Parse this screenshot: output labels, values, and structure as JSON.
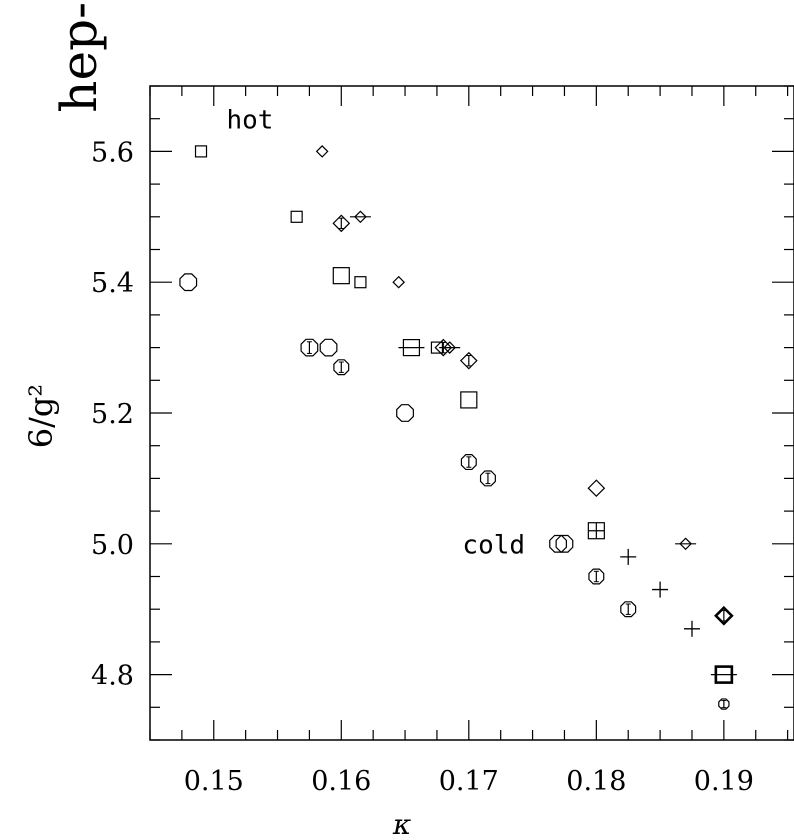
{
  "corner_text": "hep-",
  "chart_data": {
    "type": "scatter",
    "title": "",
    "xlabel": "κ",
    "ylabel": "6/g²",
    "xlim": [
      0.145,
      0.1955
    ],
    "ylim": [
      4.7,
      5.7
    ],
    "grid": false,
    "x_ticks": [
      0.15,
      0.16,
      0.17,
      0.18,
      0.19
    ],
    "x_tick_labels": [
      "0.15",
      "0.16",
      "0.17",
      "0.18",
      "0.19"
    ],
    "y_ticks": [
      4.8,
      5.0,
      5.2,
      5.4,
      5.6
    ],
    "y_tick_labels": [
      "4.8",
      "5.0",
      "5.2",
      "5.4",
      "5.6"
    ],
    "annotations": [
      {
        "text": "hot",
        "x": 0.151,
        "y": 5.635
      },
      {
        "text": "cold",
        "x": 0.1695,
        "y": 4.985
      }
    ],
    "points": [
      {
        "x": 0.149,
        "y": 5.6,
        "marker": "square",
        "size": "small"
      },
      {
        "x": 0.1585,
        "y": 5.6,
        "marker": "diamond",
        "size": "small"
      },
      {
        "x": 0.1565,
        "y": 5.5,
        "marker": "square",
        "size": "small"
      },
      {
        "x": 0.16,
        "y": 5.49,
        "marker": "diamond",
        "size": "medium",
        "errorbar": true
      },
      {
        "x": 0.1615,
        "y": 5.5,
        "marker": "diamond",
        "size": "small",
        "hbar": true
      },
      {
        "x": 0.148,
        "y": 5.4,
        "marker": "octagon",
        "size": "large"
      },
      {
        "x": 0.16,
        "y": 5.41,
        "marker": "square",
        "size": "medium"
      },
      {
        "x": 0.1615,
        "y": 5.4,
        "marker": "square",
        "size": "small"
      },
      {
        "x": 0.1645,
        "y": 5.4,
        "marker": "diamond",
        "size": "small"
      },
      {
        "x": 0.1575,
        "y": 5.3,
        "marker": "octagon",
        "size": "large",
        "errorbar": true
      },
      {
        "x": 0.159,
        "y": 5.3,
        "marker": "octagon",
        "size": "large"
      },
      {
        "x": 0.16,
        "y": 5.27,
        "marker": "octagon",
        "size": "medium",
        "errorbar": true
      },
      {
        "x": 0.1655,
        "y": 5.3,
        "marker": "square",
        "size": "medium",
        "hbar": true
      },
      {
        "x": 0.1675,
        "y": 5.3,
        "marker": "square",
        "size": "small"
      },
      {
        "x": 0.168,
        "y": 5.3,
        "marker": "diamond",
        "size": "medium",
        "errorbar": true
      },
      {
        "x": 0.1685,
        "y": 5.3,
        "marker": "diamond",
        "size": "small",
        "hbar": true
      },
      {
        "x": 0.17,
        "y": 5.28,
        "marker": "diamond",
        "size": "medium",
        "errorbar": true
      },
      {
        "x": 0.165,
        "y": 5.2,
        "marker": "octagon",
        "size": "large"
      },
      {
        "x": 0.17,
        "y": 5.22,
        "marker": "square",
        "size": "medium"
      },
      {
        "x": 0.17,
        "y": 5.125,
        "marker": "octagon",
        "size": "medium",
        "errorbar": true
      },
      {
        "x": 0.1715,
        "y": 5.1,
        "marker": "octagon",
        "size": "medium",
        "errorbar": true
      },
      {
        "x": 0.18,
        "y": 5.085,
        "marker": "diamond",
        "size": "medium"
      },
      {
        "x": 0.177,
        "y": 5.0,
        "marker": "octagon",
        "size": "large"
      },
      {
        "x": 0.1775,
        "y": 5.0,
        "marker": "octagon",
        "size": "large"
      },
      {
        "x": 0.18,
        "y": 5.02,
        "marker": "square",
        "size": "medium",
        "cross": true
      },
      {
        "x": 0.1825,
        "y": 4.98,
        "marker": "plus",
        "size": "medium"
      },
      {
        "x": 0.187,
        "y": 5.0,
        "marker": "diamond",
        "size": "small",
        "hbar": true
      },
      {
        "x": 0.18,
        "y": 4.95,
        "marker": "octagon",
        "size": "medium",
        "errorbar": true
      },
      {
        "x": 0.185,
        "y": 4.93,
        "marker": "plus",
        "size": "medium"
      },
      {
        "x": 0.1825,
        "y": 4.9,
        "marker": "octagon",
        "size": "medium",
        "errorbar": true
      },
      {
        "x": 0.1875,
        "y": 4.87,
        "marker": "plus",
        "size": "medium"
      },
      {
        "x": 0.19,
        "y": 4.89,
        "marker": "diamond",
        "size": "medium",
        "bold": true,
        "errorbar": true
      },
      {
        "x": 0.19,
        "y": 4.8,
        "marker": "square",
        "size": "medium",
        "bold": true,
        "hbar": true
      },
      {
        "x": 0.19,
        "y": 4.755,
        "marker": "octagon",
        "size": "small",
        "errorbar": true
      }
    ]
  }
}
